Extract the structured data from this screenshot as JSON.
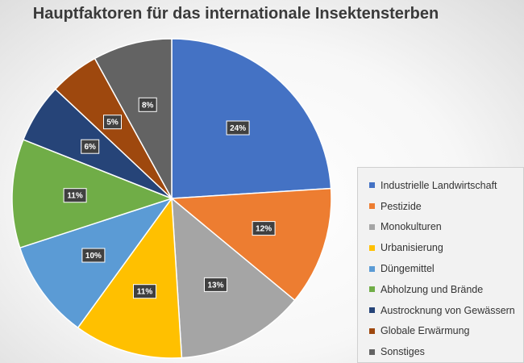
{
  "chart_data": {
    "type": "pie",
    "title": "Hauptfaktoren für das internationale Insektensterben",
    "start_angle_deg": 0,
    "direction": "clockwise",
    "legend_position": "right",
    "slices": [
      {
        "name": "Industrielle Landwirtschaft",
        "value": 24,
        "label": "24%",
        "color": "#4472C4"
      },
      {
        "name": "Pestizide",
        "value": 12,
        "label": "12%",
        "color": "#ED7D31"
      },
      {
        "name": "Monokulturen",
        "value": 13,
        "label": "13%",
        "color": "#A5A5A5"
      },
      {
        "name": "Urbanisierung",
        "value": 11,
        "label": "11%",
        "color": "#FFC000"
      },
      {
        "name": "Düngemittel",
        "value": 10,
        "label": "10%",
        "color": "#5B9BD5"
      },
      {
        "name": "Abholzung und Brände",
        "value": 11,
        "label": "11%",
        "color": "#70AD47"
      },
      {
        "name": "Austrocknung von Gewässern",
        "value": 6,
        "label": "6%",
        "color": "#264478"
      },
      {
        "name": "Globale Erwärmung",
        "value": 5,
        "label": "5%",
        "color": "#9E480E"
      },
      {
        "name": "Sonstiges",
        "value": 8,
        "label": "8%",
        "color": "#636363"
      }
    ]
  }
}
